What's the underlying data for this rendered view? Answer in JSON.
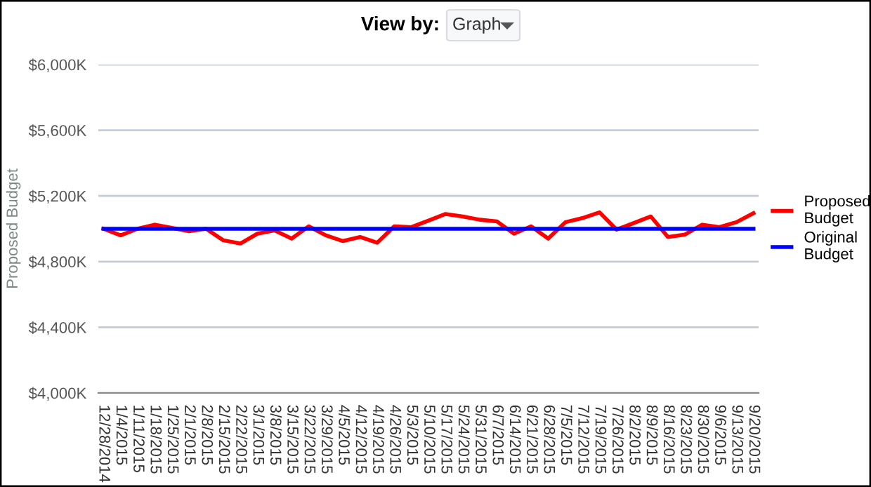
{
  "chart_data": {
    "type": "line",
    "ylabel": "Proposed Budget",
    "annotations": [
      "View by:",
      "Graph"
    ],
    "categories": [
      "12/28/2014",
      "1/4/2015",
      "1/11/2015",
      "1/18/2015",
      "1/25/2015",
      "2/1/2015",
      "2/8/2015",
      "2/15/2015",
      "2/22/2015",
      "3/1/2015",
      "3/8/2015",
      "3/15/2015",
      "3/22/2015",
      "3/29/2015",
      "4/5/2015",
      "4/12/2015",
      "4/19/2015",
      "4/26/2015",
      "5/3/2015",
      "5/10/2015",
      "5/17/2015",
      "5/24/2015",
      "5/31/2015",
      "6/7/2015",
      "6/14/2015",
      "6/21/2015",
      "6/28/2015",
      "7/5/2015",
      "7/12/2015",
      "7/19/2015",
      "7/26/2015",
      "8/2/2015",
      "8/9/2015",
      "8/16/2015",
      "8/23/2015",
      "8/30/2015",
      "9/6/2015",
      "9/13/2015",
      "9/20/2015"
    ],
    "series": [
      {
        "name": "Proposed Budget",
        "color": "#ff0000",
        "values": [
          5000,
          4960,
          5000,
          5025,
          5005,
          4985,
          5000,
          4930,
          4910,
          4970,
          4990,
          4940,
          5015,
          4960,
          4925,
          4950,
          4915,
          5015,
          5010,
          5050,
          5090,
          5075,
          5055,
          5045,
          4970,
          5015,
          4940,
          5040,
          5065,
          5100,
          4995,
          5035,
          5075,
          4950,
          4965,
          5025,
          5010,
          5040,
          5095
        ]
      },
      {
        "name": "Original Budget",
        "color": "#0000ff",
        "values": [
          5000,
          5000,
          5000,
          5000,
          5000,
          5000,
          5000,
          5000,
          5000,
          5000,
          5000,
          5000,
          5000,
          5000,
          5000,
          5000,
          5000,
          5000,
          5000,
          5000,
          5000,
          5000,
          5000,
          5000,
          5000,
          5000,
          5000,
          5000,
          5000,
          5000,
          5000,
          5000,
          5000,
          5000,
          5000,
          5000,
          5000,
          5000,
          5000
        ]
      }
    ],
    "ylim": [
      4000,
      6000
    ],
    "yticks": [
      {
        "value": 4000,
        "label": "$4,000K"
      },
      {
        "value": 4400,
        "label": "$4,400K"
      },
      {
        "value": 4800,
        "label": "$4,800K"
      },
      {
        "value": 5200,
        "label": "$5,200K"
      },
      {
        "value": 5600,
        "label": "$5,600K"
      },
      {
        "value": 6000,
        "label": "$6,000K"
      }
    ],
    "grid": "y",
    "legend": "right",
    "marker": "none",
    "line_style": "solid"
  }
}
